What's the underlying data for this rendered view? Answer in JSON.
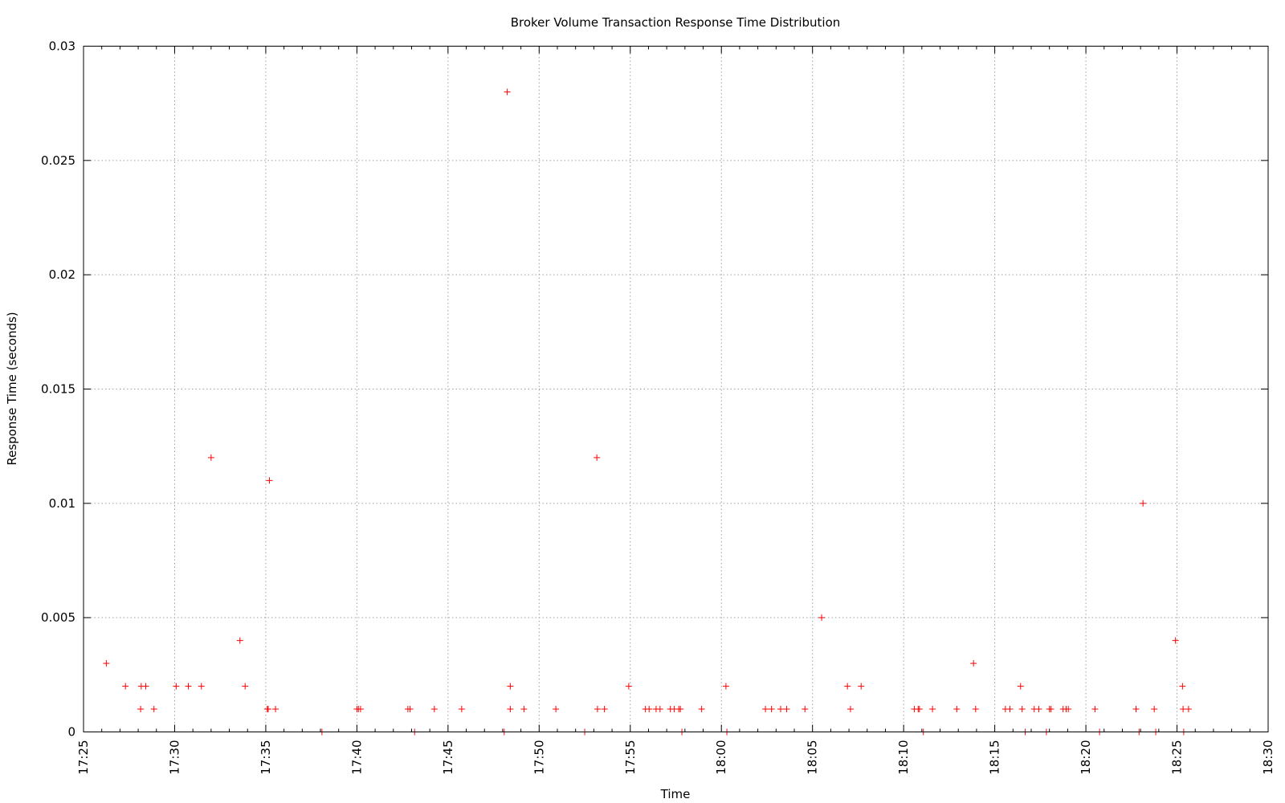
{
  "chart_data": {
    "type": "scatter",
    "title": "Broker Volume Transaction Response Time Distribution",
    "xlabel": "Time",
    "ylabel": "Response Time (seconds)",
    "grid": true,
    "x_ticks": [
      "17:25",
      "17:30",
      "17:35",
      "17:40",
      "17:45",
      "17:50",
      "17:55",
      "18:00",
      "18:05",
      "18:10",
      "18:15",
      "18:20",
      "18:25",
      "18:30"
    ],
    "y_ticks": [
      "0",
      "0.005",
      "0.01",
      "0.015",
      "0.02",
      "0.025",
      "0.03"
    ],
    "xlim": [
      "17:25",
      "18:30"
    ],
    "ylim": [
      0,
      0.03
    ],
    "marker": "+",
    "marker_color": "#ff0000",
    "series": [
      {
        "points": [
          [
            "17:26:15",
            0.003
          ],
          [
            "17:27:18",
            0.002
          ],
          [
            "17:28:08",
            0.001
          ],
          [
            "17:28:10",
            0.002
          ],
          [
            "17:28:25",
            0.002
          ],
          [
            "17:28:52",
            0.001
          ],
          [
            "17:30:05",
            0.002
          ],
          [
            "17:30:45",
            0.002
          ],
          [
            "17:31:28",
            0.002
          ],
          [
            "17:32:00",
            0.012
          ],
          [
            "17:33:35",
            0.004
          ],
          [
            "17:33:52",
            0.002
          ],
          [
            "17:35:05",
            0.001
          ],
          [
            "17:35:08",
            0.001
          ],
          [
            "17:35:12",
            0.011
          ],
          [
            "17:35:32",
            0.001
          ],
          [
            "17:38:05",
            0.0
          ],
          [
            "17:40:00",
            0.001
          ],
          [
            "17:40:05",
            0.001
          ],
          [
            "17:40:12",
            0.001
          ],
          [
            "17:42:48",
            0.001
          ],
          [
            "17:42:55",
            0.001
          ],
          [
            "17:43:10",
            0.0
          ],
          [
            "17:44:15",
            0.001
          ],
          [
            "17:45:45",
            0.001
          ],
          [
            "17:48:05",
            0.0
          ],
          [
            "17:48:15",
            0.028
          ],
          [
            "17:48:25",
            0.002
          ],
          [
            "17:48:25",
            0.001
          ],
          [
            "17:49:10",
            0.001
          ],
          [
            "17:50:55",
            0.001
          ],
          [
            "17:52:30",
            0.0
          ],
          [
            "17:53:10",
            0.012
          ],
          [
            "17:53:12",
            0.001
          ],
          [
            "17:53:35",
            0.001
          ],
          [
            "17:54:55",
            0.002
          ],
          [
            "17:55:50",
            0.001
          ],
          [
            "17:56:02",
            0.001
          ],
          [
            "17:56:25",
            0.001
          ],
          [
            "17:56:38",
            0.001
          ],
          [
            "17:57:12",
            0.001
          ],
          [
            "17:57:25",
            0.001
          ],
          [
            "17:57:40",
            0.001
          ],
          [
            "17:57:45",
            0.001
          ],
          [
            "17:57:50",
            0.0
          ],
          [
            "17:58:55",
            0.001
          ],
          [
            "18:00:15",
            0.002
          ],
          [
            "18:00:18",
            0.0
          ],
          [
            "18:02:25",
            0.001
          ],
          [
            "18:02:45",
            0.001
          ],
          [
            "18:03:15",
            0.001
          ],
          [
            "18:03:35",
            0.001
          ],
          [
            "18:04:35",
            0.001
          ],
          [
            "18:05:30",
            0.005
          ],
          [
            "18:06:55",
            0.002
          ],
          [
            "18:07:05",
            0.001
          ],
          [
            "18:07:40",
            0.002
          ],
          [
            "18:10:35",
            0.001
          ],
          [
            "18:10:48",
            0.001
          ],
          [
            "18:10:52",
            0.001
          ],
          [
            "18:11:05",
            0.0
          ],
          [
            "18:11:35",
            0.001
          ],
          [
            "18:12:55",
            0.001
          ],
          [
            "18:13:50",
            0.003
          ],
          [
            "18:13:57",
            0.001
          ],
          [
            "18:15:35",
            0.001
          ],
          [
            "18:15:50",
            0.001
          ],
          [
            "18:16:25",
            0.002
          ],
          [
            "18:16:30",
            0.001
          ],
          [
            "18:16:40",
            0.0
          ],
          [
            "18:17:10",
            0.001
          ],
          [
            "18:17:25",
            0.001
          ],
          [
            "18:17:50",
            0.0
          ],
          [
            "18:18:00",
            0.001
          ],
          [
            "18:18:05",
            0.001
          ],
          [
            "18:18:45",
            0.001
          ],
          [
            "18:18:55",
            0.001
          ],
          [
            "18:19:02",
            0.001
          ],
          [
            "18:20:30",
            0.001
          ],
          [
            "18:20:45",
            0.0
          ],
          [
            "18:22:45",
            0.001
          ],
          [
            "18:22:55",
            0.0
          ],
          [
            "18:23:08",
            0.01
          ],
          [
            "18:23:45",
            0.001
          ],
          [
            "18:23:50",
            0.0
          ],
          [
            "18:24:55",
            0.004
          ],
          [
            "18:25:18",
            0.002
          ],
          [
            "18:25:20",
            0.001
          ],
          [
            "18:25:22",
            0.0
          ],
          [
            "18:25:38",
            0.001
          ]
        ]
      }
    ]
  }
}
